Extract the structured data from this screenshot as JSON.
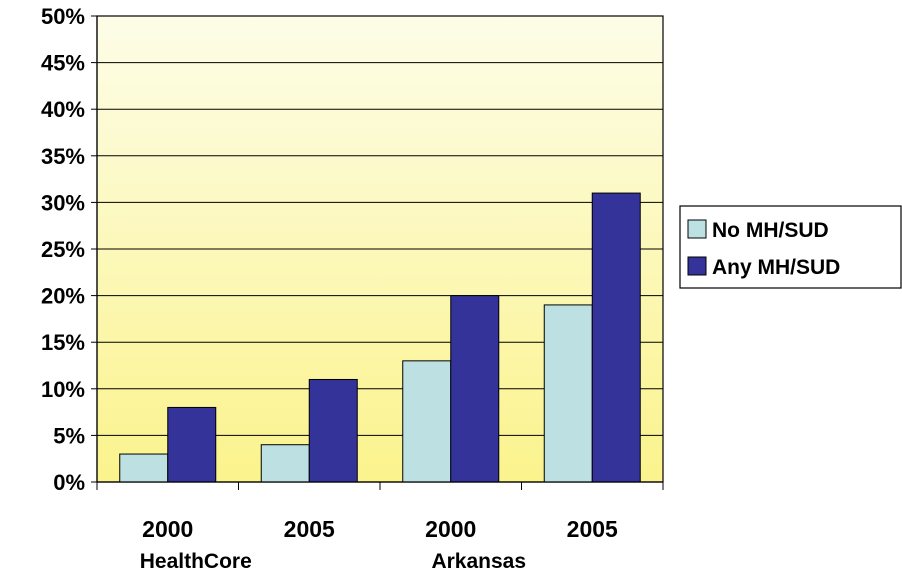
{
  "chart_data": {
    "type": "bar",
    "categories": [
      "2000",
      "2005",
      "2000",
      "2005"
    ],
    "groups": [
      "HealthCore",
      "Arkansas"
    ],
    "series": [
      {
        "name": "No MH/SUD",
        "values": [
          3,
          4,
          13,
          19
        ],
        "color": "#bde0e3"
      },
      {
        "name": "Any MH/SUD",
        "values": [
          8,
          11,
          20,
          31
        ],
        "color": "#333399"
      }
    ],
    "ylim": [
      0,
      50
    ],
    "ytick_labels": [
      "0%",
      "5%",
      "10%",
      "15%",
      "20%",
      "25%",
      "30%",
      "35%",
      "40%",
      "45%",
      "50%"
    ],
    "y_ticks": [
      0,
      5,
      10,
      15,
      20,
      25,
      30,
      35,
      40,
      45,
      50
    ],
    "grid": true,
    "legend_position": "right",
    "plot_background": [
      "#fdfde8",
      "#fbf38c"
    ]
  }
}
